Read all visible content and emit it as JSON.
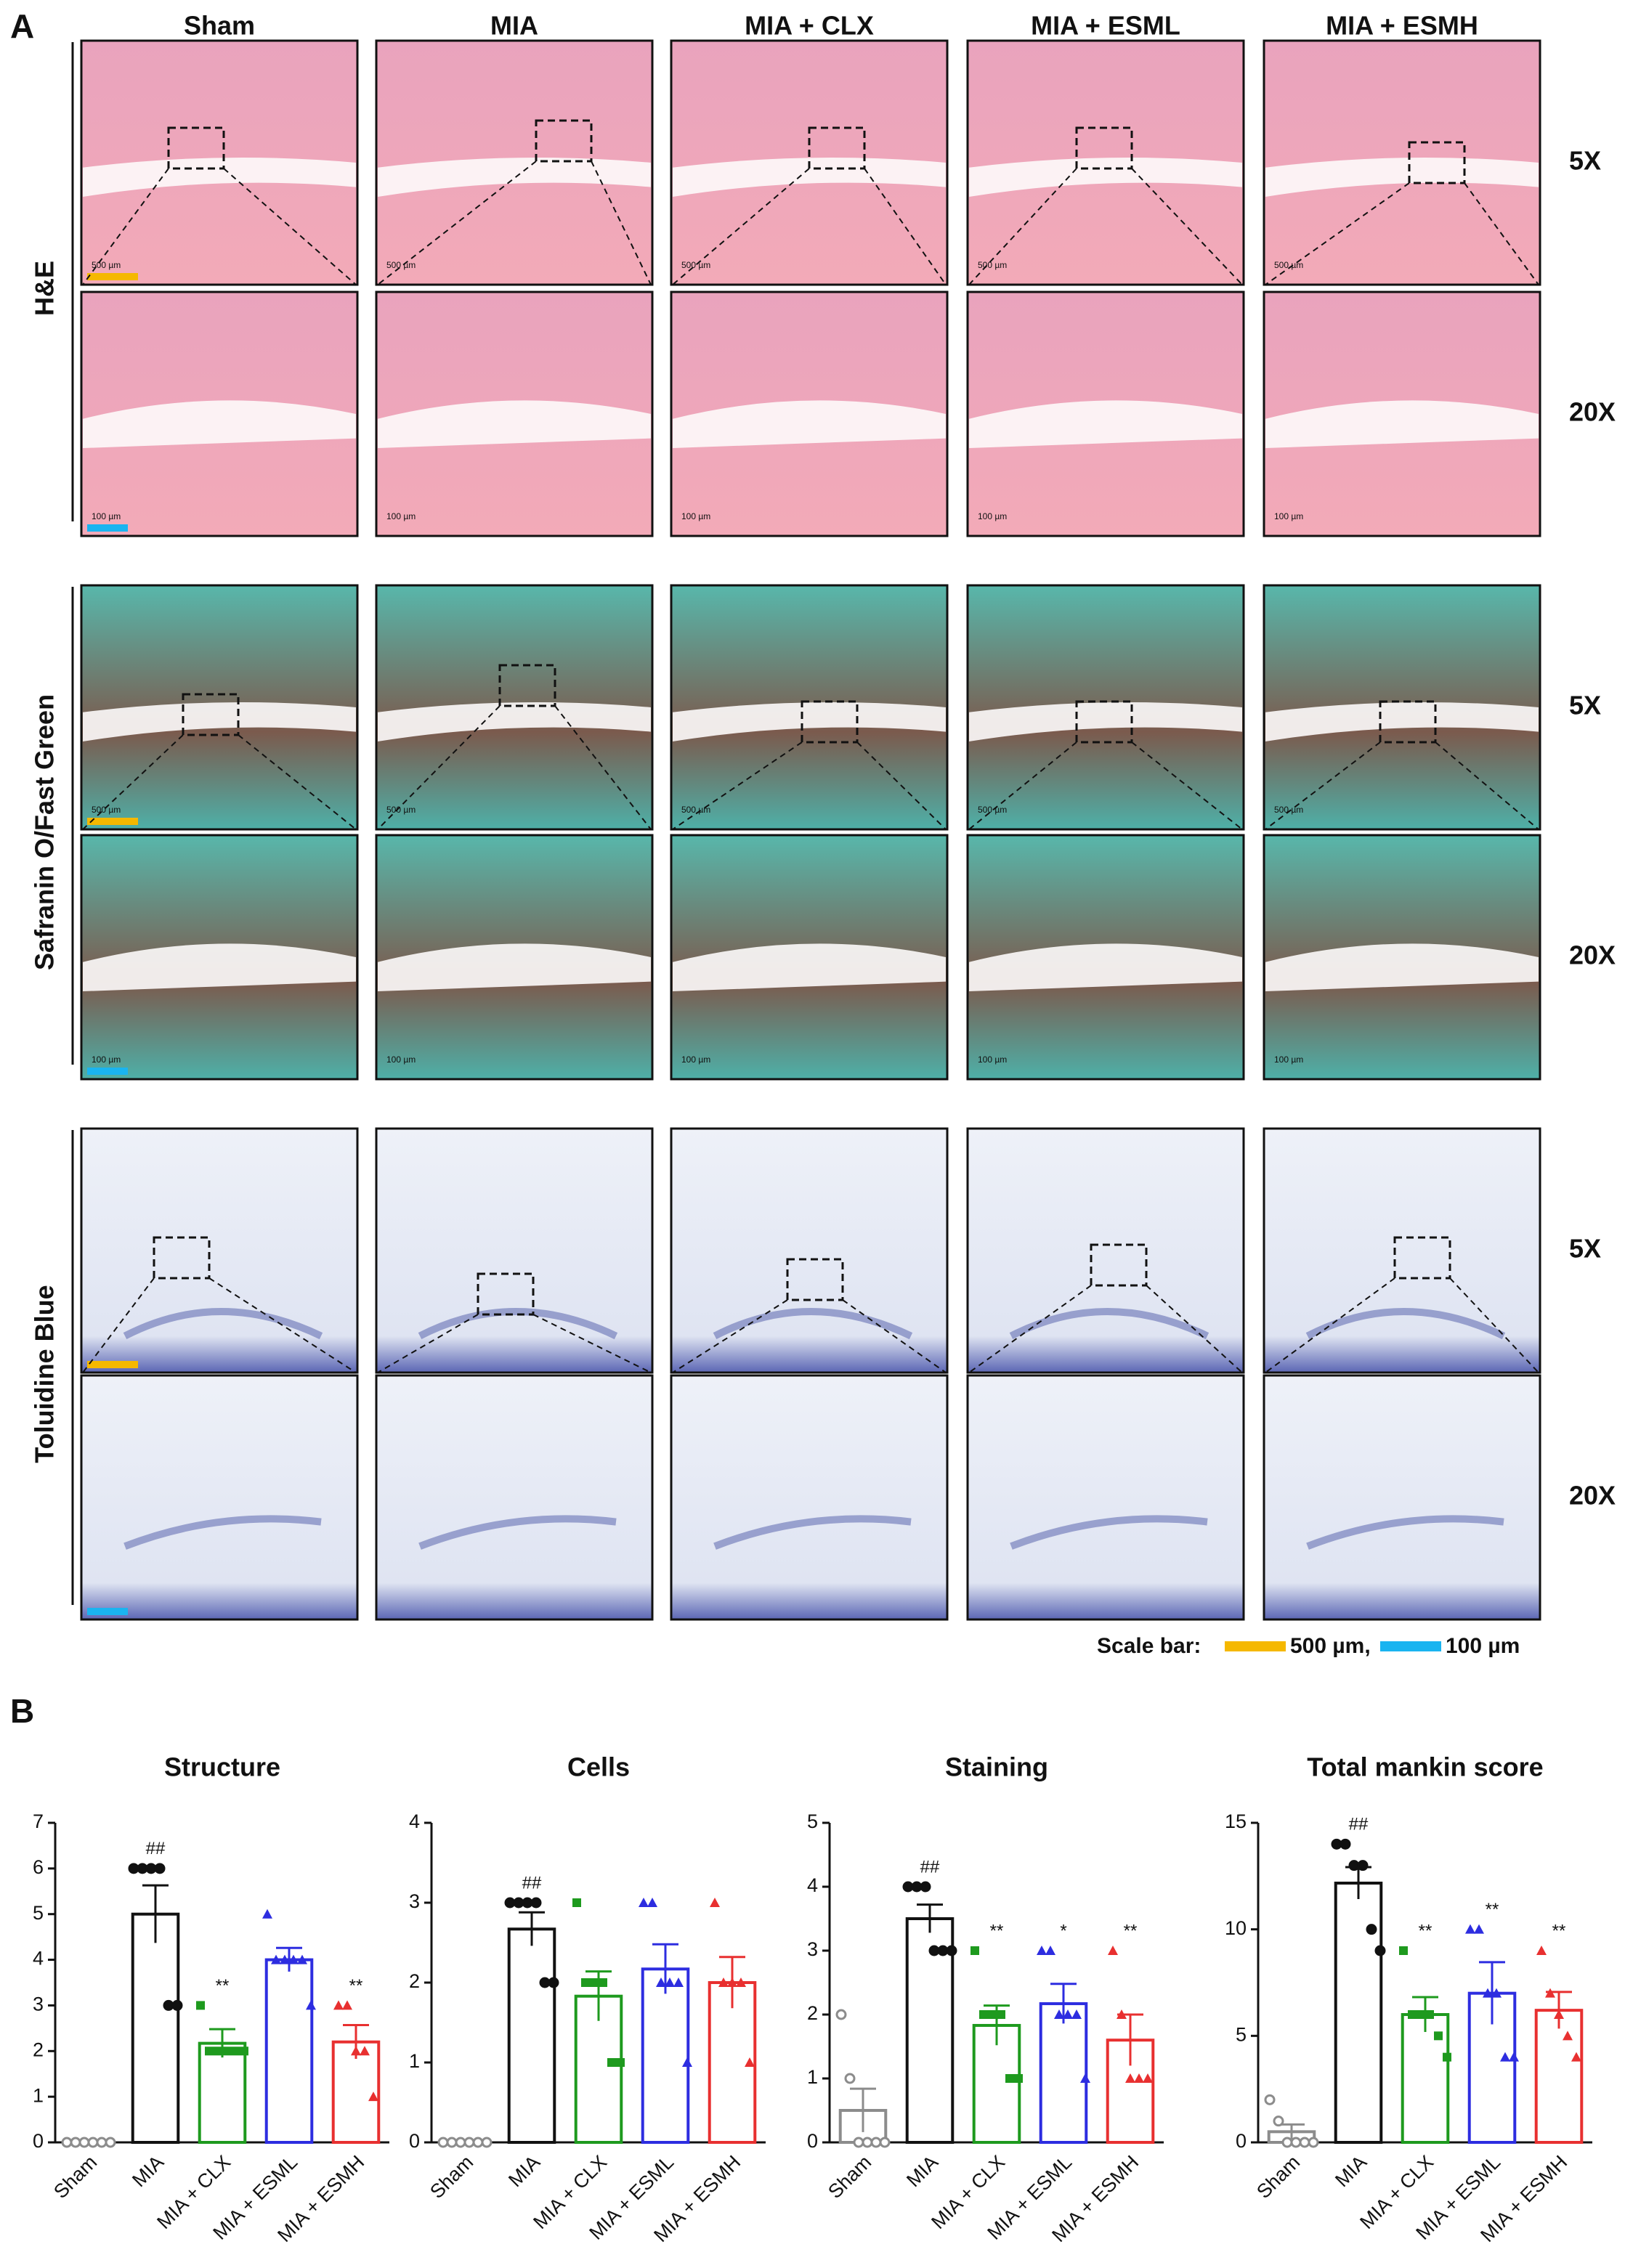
{
  "panel_a": {
    "label": "A",
    "columns": [
      "Sham",
      "MIA",
      "MIA + CLX",
      "MIA + ESML",
      "MIA + ESMH"
    ],
    "stains": [
      "H&E",
      "Safranin O/Fast Green",
      "Toluidine Blue"
    ],
    "magnifications": [
      "5X",
      "20X"
    ],
    "image_scale_labels": [
      "500 µm",
      "100 µm"
    ],
    "scale_bar": {
      "title": "Scale bar:",
      "items": [
        {
          "label": "500 µm,",
          "color": "#f5b800"
        },
        {
          "label": "100 µm",
          "color": "#1ab4f0"
        }
      ]
    }
  },
  "panel_b": {
    "label": "B"
  },
  "chart_data": [
    {
      "type": "bar",
      "title": "Structure",
      "categories": [
        "Sham",
        "MIA",
        "MIA + CLX",
        "MIA + ESML",
        "MIA + ESMH"
      ],
      "values": [
        0,
        5,
        2.17,
        4,
        2.2
      ],
      "errors": [
        0,
        0.63,
        0.31,
        0.26,
        0.37
      ],
      "points": [
        [
          0,
          0,
          0,
          0,
          0,
          0
        ],
        [
          6,
          6,
          6,
          6,
          3,
          3
        ],
        [
          3,
          2,
          2,
          2,
          2,
          2
        ],
        [
          5,
          4,
          4,
          4,
          4,
          3
        ],
        [
          3,
          3,
          2,
          2,
          1
        ]
      ],
      "annotations": [
        null,
        "##",
        "**",
        null,
        "**"
      ],
      "colors": [
        "#8c8c8c",
        "#111111",
        "#1e9a1e",
        "#2d2de0",
        "#e83030"
      ],
      "markers": [
        "circle-open",
        "circle",
        "square",
        "triangle",
        "triangle"
      ],
      "ylim": [
        0,
        7
      ],
      "yticks": [
        0,
        1,
        2,
        3,
        4,
        5,
        6,
        7
      ]
    },
    {
      "type": "bar",
      "title": "Cells",
      "categories": [
        "Sham",
        "MIA",
        "MIA + CLX",
        "MIA + ESML",
        "MIA + ESMH"
      ],
      "values": [
        0,
        2.67,
        1.83,
        2.17,
        2
      ],
      "errors": [
        0,
        0.21,
        0.31,
        0.31,
        0.32
      ],
      "points": [
        [
          0,
          0,
          0,
          0,
          0,
          0
        ],
        [
          3,
          3,
          3,
          3,
          2,
          2
        ],
        [
          3,
          2,
          2,
          2,
          1,
          1
        ],
        [
          3,
          3,
          2,
          2,
          2,
          1
        ],
        [
          3,
          2,
          2,
          2,
          1
        ]
      ],
      "annotations": [
        null,
        "##",
        null,
        null,
        null
      ],
      "colors": [
        "#8c8c8c",
        "#111111",
        "#1e9a1e",
        "#2d2de0",
        "#e83030"
      ],
      "markers": [
        "circle-open",
        "circle",
        "square",
        "triangle",
        "triangle"
      ],
      "ylim": [
        0,
        4
      ],
      "yticks": [
        0,
        1,
        2,
        3,
        4
      ]
    },
    {
      "type": "bar",
      "title": "Staining",
      "categories": [
        "Sham",
        "MIA",
        "MIA + CLX",
        "MIA + ESML",
        "MIA + ESMH"
      ],
      "values": [
        0.5,
        3.5,
        1.83,
        2.17,
        1.6
      ],
      "errors": [
        0.34,
        0.22,
        0.31,
        0.31,
        0.4
      ],
      "points": [
        [
          2,
          1,
          0,
          0,
          0,
          0
        ],
        [
          4,
          4,
          4,
          3,
          3,
          3
        ],
        [
          3,
          2,
          2,
          2,
          1,
          1
        ],
        [
          3,
          3,
          2,
          2,
          2,
          1
        ],
        [
          3,
          2,
          1,
          1,
          1
        ]
      ],
      "annotations": [
        null,
        "##",
        "**",
        "*",
        "**"
      ],
      "colors": [
        "#8c8c8c",
        "#111111",
        "#1e9a1e",
        "#2d2de0",
        "#e83030"
      ],
      "markers": [
        "circle-open",
        "circle",
        "square",
        "triangle",
        "triangle"
      ],
      "ylim": [
        0,
        5
      ],
      "yticks": [
        0,
        1,
        2,
        3,
        4,
        5
      ]
    },
    {
      "type": "bar",
      "title": "Total mankin score",
      "categories": [
        "Sham",
        "MIA",
        "MIA + CLX",
        "MIA + ESML",
        "MIA + ESMH"
      ],
      "values": [
        0.5,
        12.17,
        6,
        7,
        6.2
      ],
      "errors": [
        0.34,
        0.75,
        0.82,
        1.46,
        0.86
      ],
      "points": [
        [
          2,
          1,
          0,
          0,
          0,
          0
        ],
        [
          14,
          14,
          13,
          13,
          10,
          9
        ],
        [
          9,
          6,
          6,
          6,
          5,
          4
        ],
        [
          10,
          10,
          7,
          7,
          4,
          4
        ],
        [
          9,
          7,
          6,
          5,
          4
        ]
      ],
      "annotations": [
        null,
        "##",
        "**",
        "**",
        "**"
      ],
      "colors": [
        "#8c8c8c",
        "#111111",
        "#1e9a1e",
        "#2d2de0",
        "#e83030"
      ],
      "markers": [
        "circle-open",
        "circle",
        "square",
        "triangle",
        "triangle"
      ],
      "ylim": [
        0,
        15
      ],
      "yticks": [
        0,
        5,
        10,
        15
      ]
    }
  ]
}
